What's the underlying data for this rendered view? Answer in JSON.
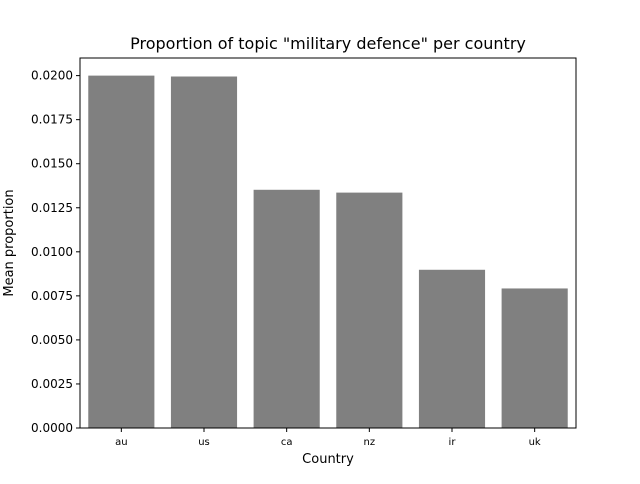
{
  "chart_data": {
    "type": "bar",
    "title": "Proportion of topic \"military defence\" per country",
    "xlabel": "Country",
    "ylabel": "Mean proportion",
    "categories": [
      "au",
      "us",
      "ca",
      "nz",
      "ir",
      "uk"
    ],
    "values": [
      0.02,
      0.01995,
      0.01352,
      0.01336,
      0.00898,
      0.00792
    ],
    "ylim": [
      0,
      0.021
    ],
    "yticks": [
      "0.0000",
      "0.0025",
      "0.0050",
      "0.0075",
      "0.0100",
      "0.0125",
      "0.0150",
      "0.0175",
      "0.0200"
    ],
    "bar_color": "#808080",
    "grid": false,
    "legend": "none"
  }
}
